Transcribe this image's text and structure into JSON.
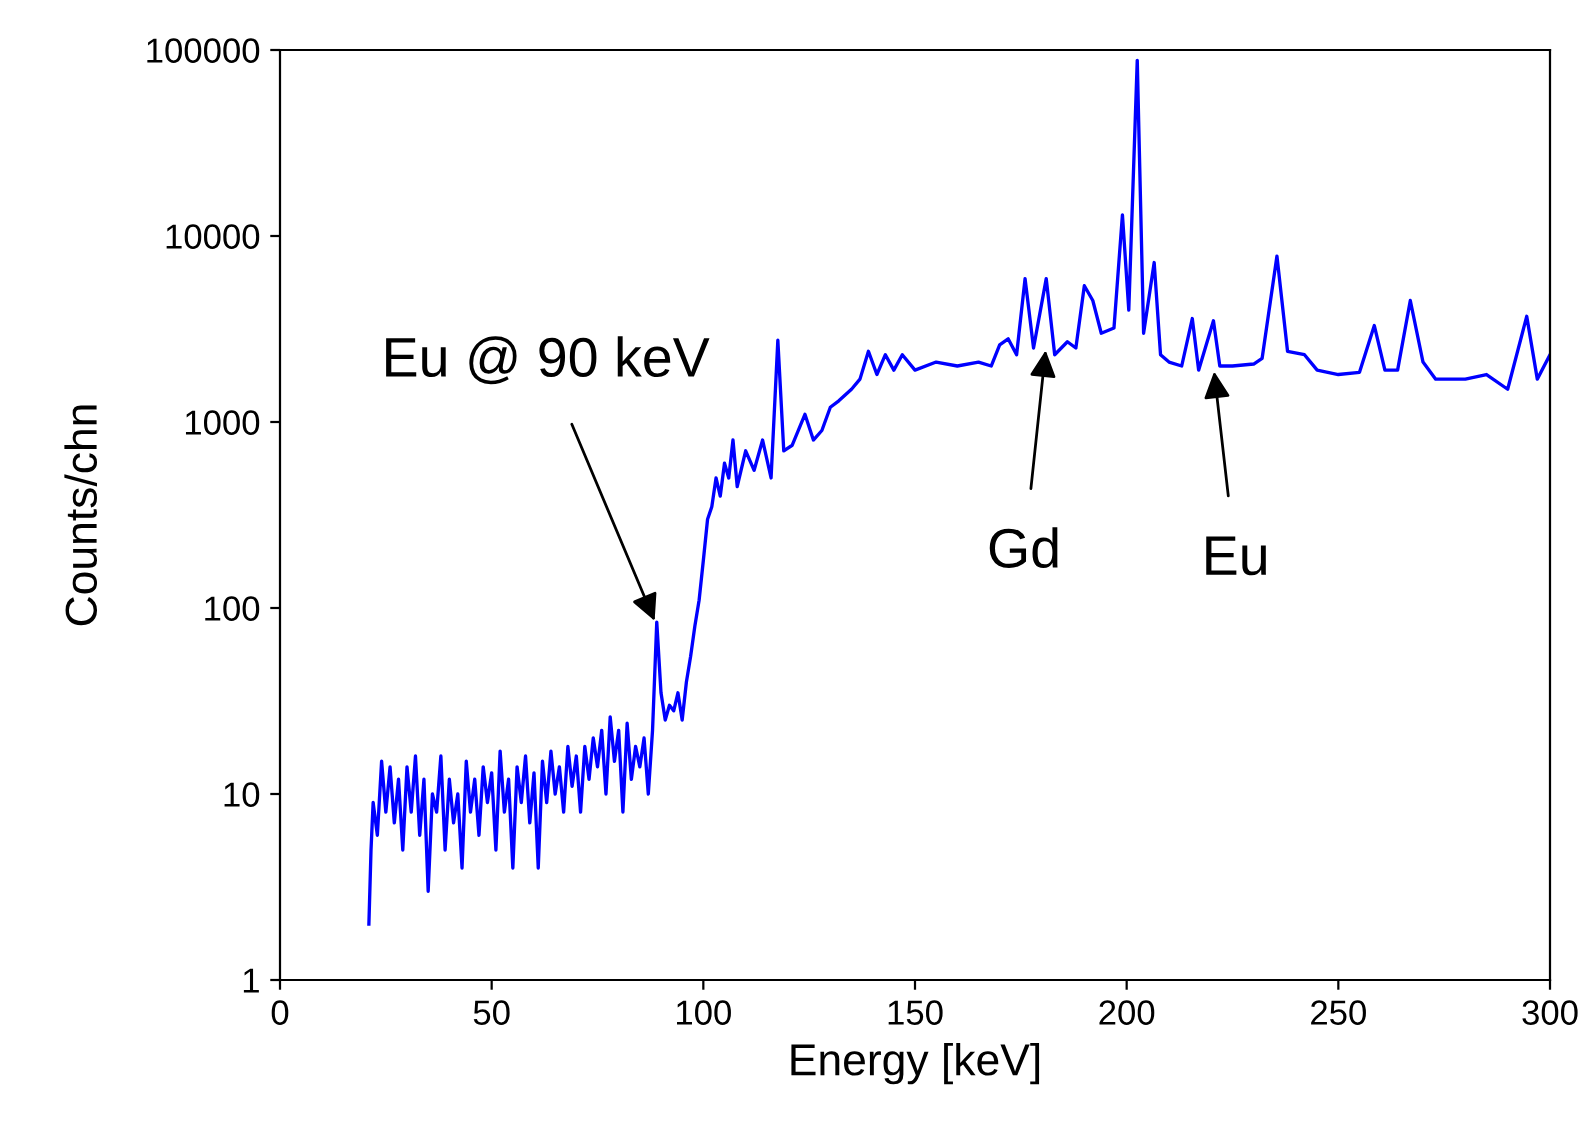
{
  "chart_data": {
    "type": "line",
    "xlabel": "Energy [keV]",
    "ylabel": "Counts/chn",
    "log": "y",
    "grid": false,
    "legend": false,
    "marker": "none",
    "line_style": "solid",
    "xlim": [
      0,
      300
    ],
    "xticks": [
      0,
      50,
      100,
      150,
      200,
      250,
      300
    ],
    "ylim": [
      1,
      100000
    ],
    "yticks": [
      1,
      10,
      100,
      1000,
      10000,
      100000
    ],
    "series": [
      {
        "color": "#0000ff",
        "x": [
          21,
          21.5,
          22,
          23,
          24,
          25,
          26,
          27,
          28,
          29,
          30,
          31,
          32,
          33,
          34,
          35,
          36,
          37,
          38,
          39,
          40,
          41,
          42,
          43,
          44,
          45,
          46,
          47,
          48,
          49,
          50,
          51,
          52,
          53,
          54,
          55,
          56,
          57,
          58,
          59,
          60,
          61,
          62,
          63,
          64,
          65,
          66,
          67,
          68,
          69,
          70,
          71,
          72,
          73,
          74,
          75,
          76,
          77,
          78,
          79,
          80,
          81,
          82,
          83,
          84,
          85,
          86,
          87,
          88,
          89,
          90,
          91,
          92,
          93,
          94,
          95,
          96,
          97,
          98,
          99,
          100,
          101,
          102,
          103,
          104,
          105,
          106,
          107,
          108,
          110,
          112,
          114,
          116,
          117.6,
          119,
          121,
          124,
          126,
          128,
          130,
          132,
          135,
          137,
          139,
          141,
          143,
          145,
          147,
          150,
          155,
          160,
          165,
          168,
          170,
          172,
          174,
          176,
          178,
          181,
          183,
          186,
          188,
          190,
          192,
          194,
          197,
          199,
          200.5,
          202.5,
          204,
          206.5,
          208,
          210,
          213,
          215.5,
          217,
          220.5,
          222,
          225,
          230,
          232,
          235.5,
          238,
          242,
          245,
          250,
          255,
          258.5,
          261,
          264,
          267,
          270,
          273,
          280,
          285,
          290,
          294.5,
          297,
          300
        ],
        "values": [
          2,
          5,
          9,
          6,
          15,
          8,
          14,
          7,
          12,
          5,
          14,
          8,
          16,
          6,
          12,
          3,
          10,
          8,
          16,
          5,
          12,
          7,
          10,
          4,
          15,
          8,
          12,
          6,
          14,
          9,
          13,
          5,
          17,
          8,
          12,
          4,
          14,
          9,
          16,
          7,
          13,
          4,
          15,
          9,
          17,
          10,
          14,
          8,
          18,
          11,
          16,
          8,
          18,
          12,
          20,
          14,
          22,
          10,
          26,
          15,
          22,
          8,
          24,
          12,
          18,
          14,
          20,
          10,
          22,
          84,
          35,
          25,
          30,
          28,
          35,
          25,
          40,
          55,
          80,
          110,
          180,
          300,
          350,
          500,
          400,
          600,
          500,
          800,
          450,
          700,
          550,
          800,
          500,
          2750,
          700,
          750,
          1100,
          800,
          900,
          1200,
          1300,
          1500,
          1700,
          2400,
          1800,
          2300,
          1900,
          2300,
          1900,
          2100,
          2000,
          2100,
          2000,
          2600,
          2800,
          2300,
          5900,
          2500,
          5900,
          2300,
          2700,
          2500,
          5400,
          4500,
          3000,
          3200,
          13000,
          4000,
          88000,
          3000,
          7200,
          2300,
          2100,
          2000,
          3600,
          1900,
          3500,
          2000,
          2000,
          2050,
          2200,
          7800,
          2400,
          2300,
          1900,
          1800,
          1850,
          3300,
          1900,
          1900,
          4500,
          2100,
          1700,
          1700,
          1800,
          1500,
          3700,
          1700,
          2300
        ]
      }
    ],
    "annotations": [
      {
        "text": "Eu @ 90 keV",
        "x": 89,
        "y": 80
      },
      {
        "text": "Gd",
        "x": 181,
        "y": 2600
      },
      {
        "text": "Eu",
        "x": 220.5,
        "y": 2000
      }
    ]
  }
}
